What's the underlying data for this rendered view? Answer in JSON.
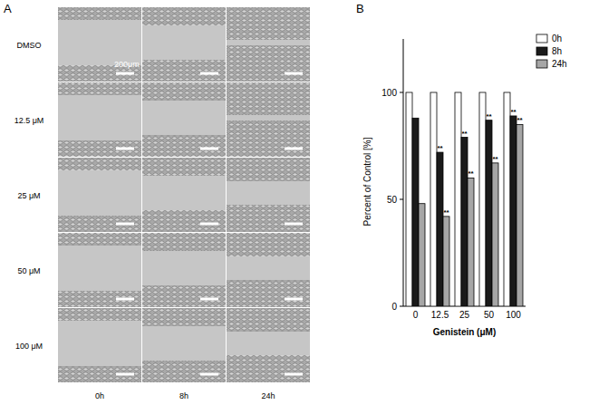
{
  "figure": {
    "panel_labels": [
      "A",
      "B"
    ],
    "rows": [
      "DMSO",
      "12.5 μM",
      "25 μM",
      "50 μM",
      "100 μM"
    ],
    "columns": [
      "0h",
      "8h",
      "24h"
    ],
    "scale_bar": "200μm"
  },
  "chart_data": {
    "type": "bar",
    "x_label": "Genistein (μM)",
    "y_label": "Percent of Control [%]",
    "categories": [
      "0",
      "12.5",
      "25",
      "50",
      "100"
    ],
    "series": [
      {
        "name": "0h",
        "color": "#ffffff",
        "values": [
          100,
          100,
          100,
          100,
          100
        ]
      },
      {
        "name": "8h",
        "color": "#1a1a1a",
        "values": [
          88,
          72,
          79,
          87,
          89
        ],
        "significance": [
          null,
          "**",
          "**",
          "**",
          "**"
        ]
      },
      {
        "name": "24h",
        "color": "#a6a6a6",
        "values": [
          48,
          42,
          60,
          67,
          85
        ],
        "significance": [
          null,
          "**",
          "**",
          "**",
          "**"
        ]
      }
    ],
    "ylim": [
      0,
      125
    ],
    "yticks": [
      0,
      50,
      100
    ],
    "legend": "upper right"
  }
}
